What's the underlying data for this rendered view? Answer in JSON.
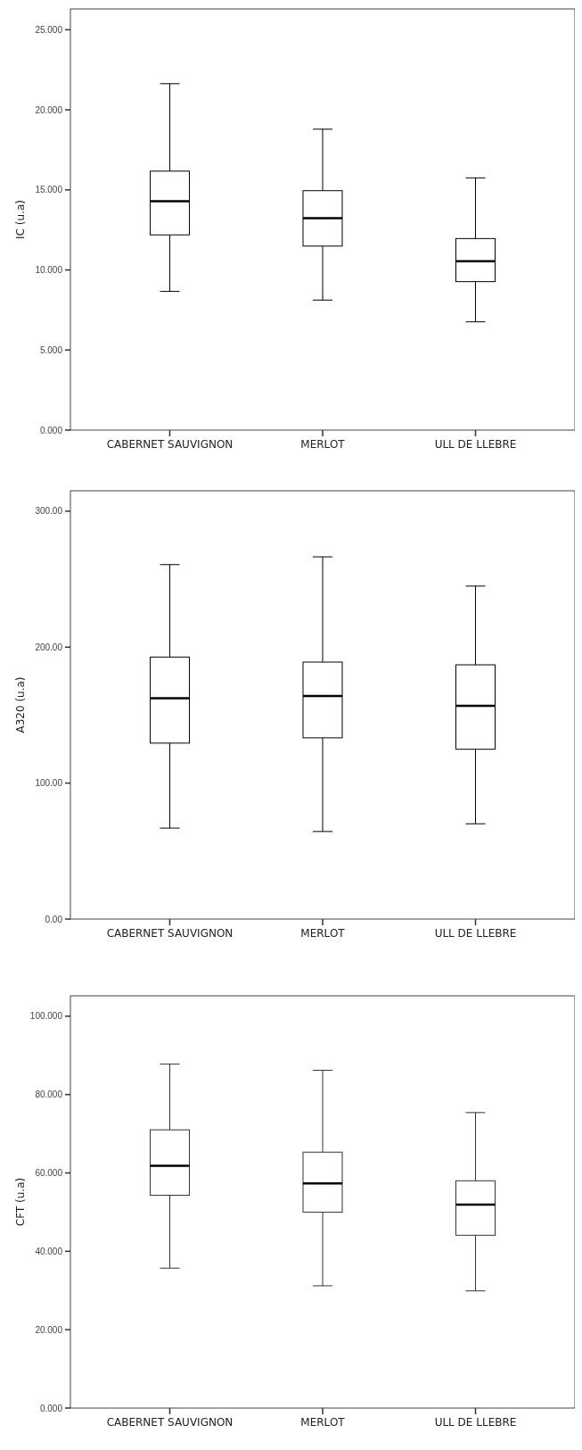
{
  "chart_data": [
    {
      "type": "box",
      "ylabel": "IC (u.a)",
      "categories": [
        "CABERNET SAUVIGNON",
        "MERLOT",
        "ULL DE LLEBRE"
      ],
      "color": "#000000",
      "ylim": [
        0,
        26.3
      ],
      "yticks": [
        {
          "value": 0,
          "label": "0.000"
        },
        {
          "value": 5,
          "label": "5.000"
        },
        {
          "value": 10,
          "label": "10.000"
        },
        {
          "value": 15,
          "label": "15.000"
        },
        {
          "value": 20,
          "label": "20.000"
        },
        {
          "value": 25,
          "label": "25.000"
        }
      ],
      "grid": false,
      "boxes": [
        {
          "low": 8.66,
          "q1": 12.19,
          "median": 14.29,
          "q3": 16.17,
          "high": 21.63
        },
        {
          "low": 8.12,
          "q1": 11.49,
          "median": 13.23,
          "q3": 14.95,
          "high": 18.79
        },
        {
          "low": 6.76,
          "q1": 9.27,
          "median": 10.55,
          "q3": 11.96,
          "high": 15.75
        }
      ]
    },
    {
      "type": "box",
      "ylabel": "A320 (u.a)",
      "categories": [
        "CABERNET SAUVIGNON",
        "MERLOT",
        "ULL DE LLEBRE"
      ],
      "color": "#000000",
      "ylim": [
        0,
        315
      ],
      "yticks": [
        {
          "value": 0,
          "label": "0.00"
        },
        {
          "value": 100,
          "label": "100.00"
        },
        {
          "value": 200,
          "label": "200.00"
        },
        {
          "value": 300,
          "label": "300.00"
        }
      ],
      "grid": false,
      "boxes": [
        {
          "low": 66.9,
          "q1": 129.4,
          "median": 162.4,
          "q3": 192.7,
          "high": 260.7
        },
        {
          "low": 64.4,
          "q1": 133.3,
          "median": 164.1,
          "q3": 189,
          "high": 266.4
        },
        {
          "low": 70.1,
          "q1": 124.9,
          "median": 156.8,
          "q3": 187,
          "high": 244.9
        }
      ]
    },
    {
      "type": "box",
      "ylabel": "CFT (u.a)",
      "categories": [
        "CABERNET SAUVIGNON",
        "MERLOT",
        "ULL DE LLEBRE"
      ],
      "color": "#333333",
      "ylim": [
        0,
        105.2
      ],
      "yticks": [
        {
          "value": 0,
          "label": "0.000"
        },
        {
          "value": 20,
          "label": "20.000"
        },
        {
          "value": 40,
          "label": "40.000"
        },
        {
          "value": 60,
          "label": "60.000"
        },
        {
          "value": 80,
          "label": "80.000"
        },
        {
          "value": 100,
          "label": "100.000"
        }
      ],
      "grid": false,
      "boxes": [
        {
          "low": 35.7,
          "q1": 54.3,
          "median": 61.8,
          "q3": 71,
          "high": 87.8
        },
        {
          "low": 31.2,
          "q1": 50,
          "median": 57.3,
          "q3": 65.3,
          "high": 86.2
        },
        {
          "low": 29.9,
          "q1": 44.1,
          "median": 51.9,
          "q3": 58,
          "high": 75.4
        }
      ]
    }
  ]
}
